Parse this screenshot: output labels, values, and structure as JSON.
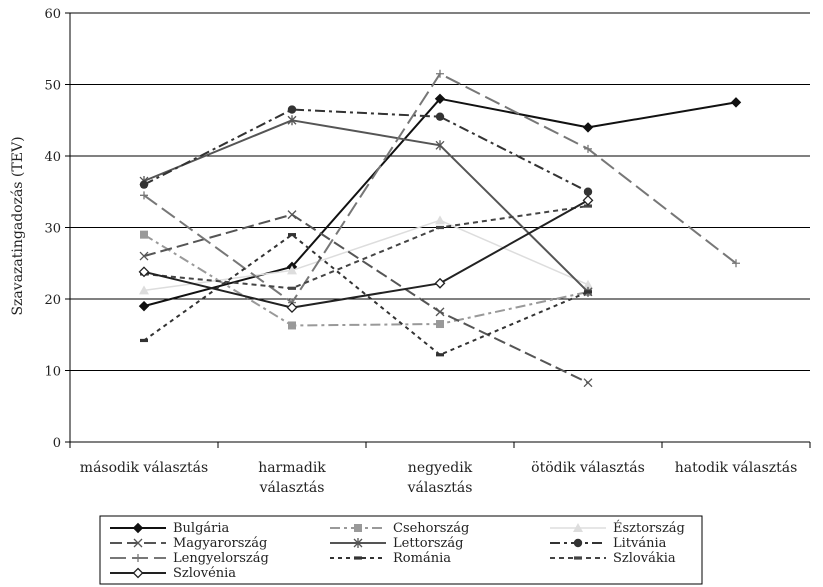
{
  "chart_data": {
    "type": "line",
    "title": "",
    "xlabel": "",
    "ylabel": "Szavazatingadozás (TEV)",
    "ylim": [
      0,
      60
    ],
    "yticks": [
      0,
      10,
      20,
      30,
      40,
      50,
      60
    ],
    "grid": "horizontal",
    "legend": "bottom",
    "categories": [
      [
        "második választás"
      ],
      [
        "harmadik",
        "választás"
      ],
      [
        "negyedik",
        "választás"
      ],
      [
        "ötödik választás"
      ],
      [
        "hatodik választás"
      ]
    ],
    "series": [
      {
        "name": "Bulgária",
        "values": [
          19,
          24.5,
          48,
          44,
          47.5
        ],
        "color": "#111111",
        "dash": "",
        "marker": "diamond-filled",
        "width": 2
      },
      {
        "name": "Csehország",
        "values": [
          29,
          16.3,
          16.5,
          21,
          null
        ],
        "color": "#999999",
        "dash": "10,4,3,4",
        "marker": "square",
        "width": 2
      },
      {
        "name": "Észtország",
        "values": [
          21.2,
          24,
          31,
          22,
          null
        ],
        "color": "#dddddd",
        "dash": "",
        "marker": "triangle",
        "width": 1.5
      },
      {
        "name": "Magyarország",
        "values": [
          26,
          31.8,
          18.2,
          8.3,
          null
        ],
        "color": "#555555",
        "dash": "12,5",
        "marker": "x",
        "width": 2
      },
      {
        "name": "Lettország",
        "values": [
          36.5,
          45,
          41.5,
          21,
          null
        ],
        "color": "#555555",
        "dash": "",
        "marker": "star",
        "width": 2
      },
      {
        "name": "Litvánia",
        "values": [
          36,
          46.5,
          45.5,
          35,
          null
        ],
        "color": "#333333",
        "dash": "10,4,3,4",
        "marker": "circle",
        "width": 2
      },
      {
        "name": "Lengyelország",
        "values": [
          34.5,
          19.5,
          51.5,
          41,
          25
        ],
        "color": "#777777",
        "dash": "16,6",
        "marker": "plus",
        "width": 2
      },
      {
        "name": "Románia",
        "values": [
          14.2,
          29,
          12.2,
          21,
          null
        ],
        "color": "#333333",
        "dash": "4,4",
        "marker": "dash",
        "width": 2
      },
      {
        "name": "Szlovákia",
        "values": [
          23.5,
          21.5,
          30,
          33,
          null
        ],
        "color": "#444444",
        "dash": "5,4",
        "marker": "dash",
        "width": 2
      },
      {
        "name": "Szlovénia",
        "values": [
          23.8,
          18.8,
          22.2,
          33.8,
          null
        ],
        "color": "#222222",
        "dash": "",
        "marker": "diamond-open",
        "width": 2
      }
    ]
  }
}
